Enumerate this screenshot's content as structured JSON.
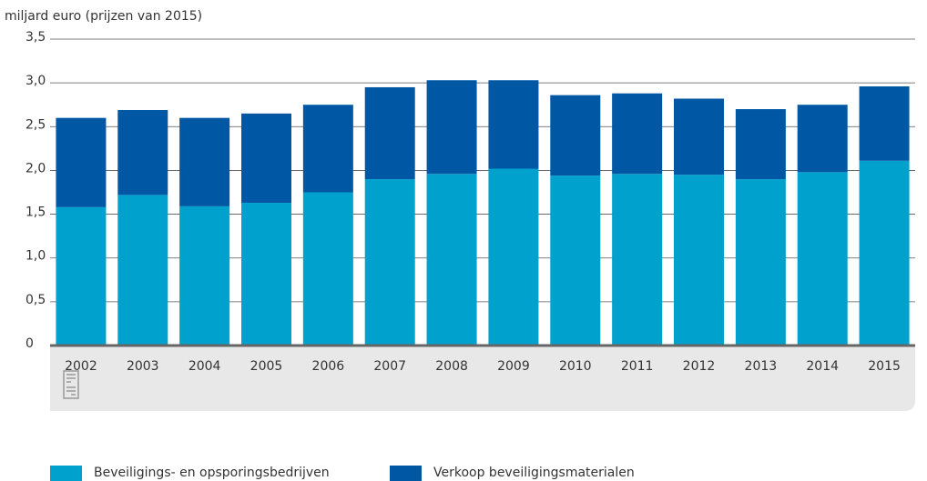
{
  "chart_data": {
    "type": "stacked_bar",
    "y_label": "miljard euro (prijzen van 2015)",
    "categories": [
      "2002",
      "2003",
      "2004",
      "2005",
      "2006",
      "2007",
      "2008",
      "2009",
      "2010",
      "2011",
      "2012",
      "2013",
      "2014",
      "2015"
    ],
    "series": [
      {
        "name": "Beveiligings- en opsporingsbedrijven",
        "color": "#00a1cd",
        "values": [
          1.58,
          1.72,
          1.59,
          1.63,
          1.75,
          1.9,
          1.96,
          2.02,
          1.94,
          1.96,
          1.95,
          1.9,
          1.98,
          2.11
        ]
      },
      {
        "name": "Verkoop beveiligingsmaterialen",
        "color": "#0058a5",
        "values": [
          1.02,
          0.97,
          1.01,
          1.02,
          1.0,
          1.05,
          1.07,
          1.01,
          0.92,
          0.92,
          0.87,
          0.8,
          0.77,
          0.85
        ]
      }
    ],
    "ylim": [
      0,
      3.5
    ],
    "yticks": [
      0,
      {
        "value": 0.5,
        "label": "0,5"
      },
      {
        "value": 1,
        "label": "1,0"
      },
      {
        "value": 1.5,
        "label": "1,5"
      },
      {
        "value": 2,
        "label": "2,0"
      },
      {
        "value": 2.5,
        "label": "2,5"
      },
      {
        "value": 3,
        "label": "3,0"
      },
      {
        "value": 3.5,
        "label": "3,5"
      }
    ],
    "grid": true
  }
}
